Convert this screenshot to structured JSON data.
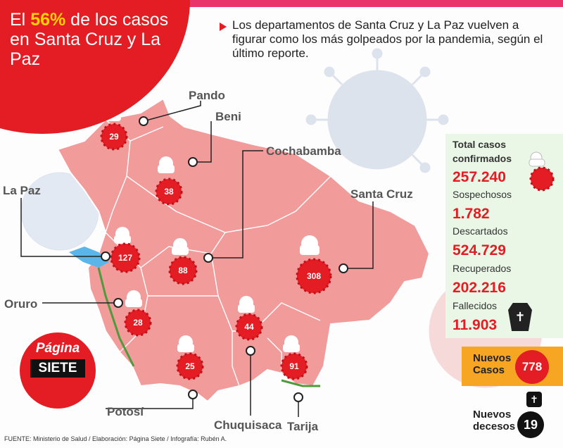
{
  "headline": {
    "pre": "El ",
    "pct": "56%",
    "post": " de los casos en Santa Cruz y La Paz"
  },
  "subtitle": "Los departamentos de Santa Cruz y La Paz vuelven a figurar como los más golpeados por la pandemia, según el último reporte.",
  "departments": [
    {
      "name": "Pando",
      "cases": "29"
    },
    {
      "name": "Beni",
      "cases": "38"
    },
    {
      "name": "La Paz",
      "cases": "127"
    },
    {
      "name": "Cochabamba",
      "cases": "88"
    },
    {
      "name": "Santa Cruz",
      "cases": "308"
    },
    {
      "name": "Oruro",
      "cases": "28"
    },
    {
      "name": "Chuquisaca",
      "cases": "44"
    },
    {
      "name": "Potosí",
      "cases": "25"
    },
    {
      "name": "Tarija",
      "cases": "91"
    }
  ],
  "stats": {
    "total_label": "Total casos confirmados",
    "total_value": "257.240",
    "sospechosos_label": "Sospechosos",
    "sospechosos_value": "1.782",
    "descartados_label": "Descartados",
    "descartados_value": "524.729",
    "recuperados_label": "Recuperados",
    "recuperados_value": "202.216",
    "fallecidos_label": "Fallecidos",
    "fallecidos_value": "11.903"
  },
  "nuevos_casos": {
    "label": "Nuevos Casos",
    "value": "778"
  },
  "nuevos_decesos": {
    "label": "Nuevos decesos",
    "value": "19"
  },
  "logo": {
    "line1": "Página",
    "line2": "SIETE"
  },
  "source": "FUENTE: Ministerio de Salud / Elaboración: Página Siete / Infografía: Rubén A.",
  "colors": {
    "accent": "#e41c23",
    "map_fill": "#f29b9b",
    "panel": "#eaf7e6",
    "highlight": "#f6a623"
  }
}
